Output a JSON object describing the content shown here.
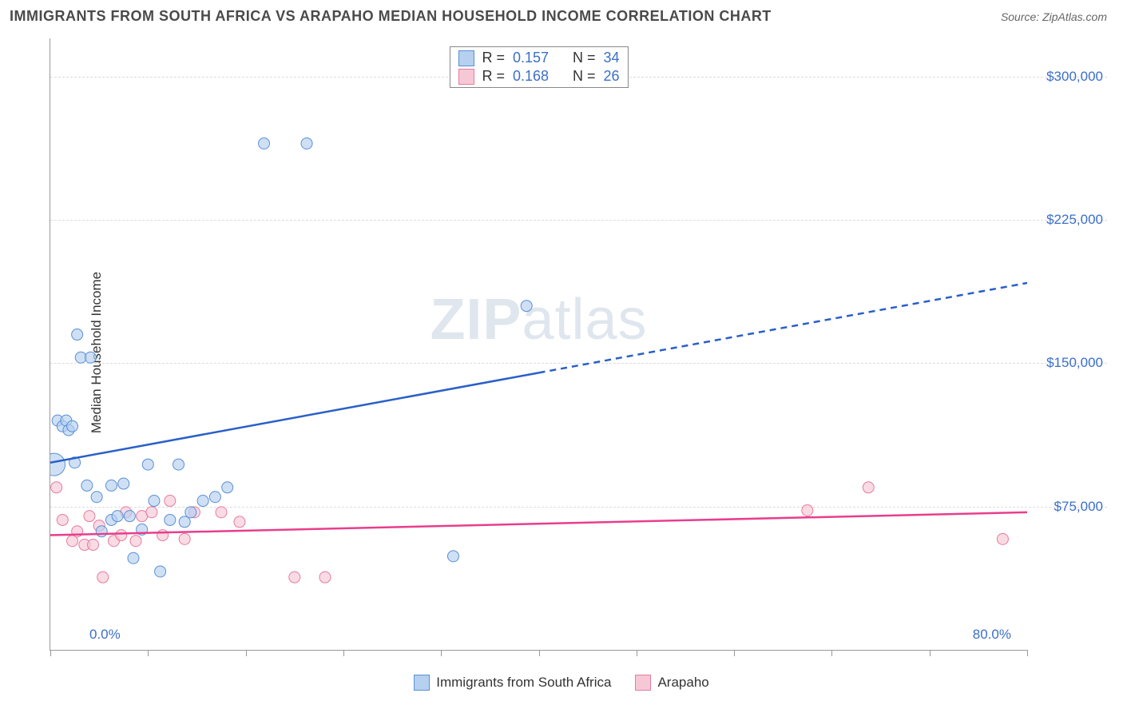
{
  "header": {
    "title": "IMMIGRANTS FROM SOUTH AFRICA VS ARAPAHO MEDIAN HOUSEHOLD INCOME CORRELATION CHART",
    "source_prefix": "Source: ",
    "source_name": "ZipAtlas.com"
  },
  "y_axis": {
    "label": "Median Household Income",
    "min": 0,
    "max": 320000,
    "ticks": [
      75000,
      150000,
      225000,
      300000
    ],
    "tick_labels": [
      "$75,000",
      "$150,000",
      "$225,000",
      "$300,000"
    ],
    "label_color": "#3b6fc9",
    "grid_color": "#dddddd"
  },
  "x_axis": {
    "min": 0,
    "max": 80,
    "min_label": "0.0%",
    "max_label": "80.0%",
    "tick_positions_pct": [
      0,
      8,
      16,
      24,
      32,
      40,
      48,
      56,
      64,
      72,
      80
    ],
    "label_color": "#3b6fc9"
  },
  "series": {
    "a": {
      "label": "Immigrants from South Africa",
      "fill": "#b6d0ef",
      "stroke": "#5a8fd6",
      "trend_color": "#2a5fc9",
      "r_label": "R =",
      "r_value": "0.157",
      "n_label": "N =",
      "n_value": "34",
      "trend": {
        "x1": 0,
        "y1": 98000,
        "x2_solid": 40,
        "y2_solid": 145000,
        "x2_dash": 80,
        "y2_dash": 192000
      },
      "points": [
        {
          "x": 0.3,
          "y": 97000,
          "r": 14
        },
        {
          "x": 0.6,
          "y": 120000,
          "r": 7
        },
        {
          "x": 1.0,
          "y": 117000,
          "r": 7
        },
        {
          "x": 1.3,
          "y": 120000,
          "r": 7
        },
        {
          "x": 1.5,
          "y": 115000,
          "r": 7
        },
        {
          "x": 1.8,
          "y": 117000,
          "r": 7
        },
        {
          "x": 2.2,
          "y": 165000,
          "r": 7
        },
        {
          "x": 2.5,
          "y": 153000,
          "r": 7
        },
        {
          "x": 3.3,
          "y": 153000,
          "r": 7
        },
        {
          "x": 2.0,
          "y": 98000,
          "r": 7
        },
        {
          "x": 3.0,
          "y": 86000,
          "r": 7
        },
        {
          "x": 3.8,
          "y": 80000,
          "r": 7
        },
        {
          "x": 4.2,
          "y": 62000,
          "r": 7
        },
        {
          "x": 5.0,
          "y": 86000,
          "r": 7
        },
        {
          "x": 5.0,
          "y": 68000,
          "r": 7
        },
        {
          "x": 5.5,
          "y": 70000,
          "r": 7
        },
        {
          "x": 6.0,
          "y": 87000,
          "r": 7
        },
        {
          "x": 6.5,
          "y": 70000,
          "r": 7
        },
        {
          "x": 6.8,
          "y": 48000,
          "r": 7
        },
        {
          "x": 7.5,
          "y": 63000,
          "r": 7
        },
        {
          "x": 8.0,
          "y": 97000,
          "r": 7
        },
        {
          "x": 8.5,
          "y": 78000,
          "r": 7
        },
        {
          "x": 9.0,
          "y": 41000,
          "r": 7
        },
        {
          "x": 9.8,
          "y": 68000,
          "r": 7
        },
        {
          "x": 10.5,
          "y": 97000,
          "r": 7
        },
        {
          "x": 11.0,
          "y": 67000,
          "r": 7
        },
        {
          "x": 11.5,
          "y": 72000,
          "r": 7
        },
        {
          "x": 12.5,
          "y": 78000,
          "r": 7
        },
        {
          "x": 13.5,
          "y": 80000,
          "r": 7
        },
        {
          "x": 14.5,
          "y": 85000,
          "r": 7
        },
        {
          "x": 17.5,
          "y": 265000,
          "r": 7
        },
        {
          "x": 21.0,
          "y": 265000,
          "r": 7
        },
        {
          "x": 33.0,
          "y": 49000,
          "r": 7
        },
        {
          "x": 39.0,
          "y": 180000,
          "r": 7
        }
      ]
    },
    "b": {
      "label": "Arapaho",
      "fill": "#f6c8d5",
      "stroke": "#e77ba0",
      "trend_color": "#e83e8c",
      "r_label": "R =",
      "r_value": "0.168",
      "n_label": "N =",
      "n_value": "26",
      "trend": {
        "x1": 0,
        "y1": 60000,
        "x2_solid": 80,
        "y2_solid": 72000,
        "x2_dash": 80,
        "y2_dash": 72000
      },
      "points": [
        {
          "x": 0.5,
          "y": 85000,
          "r": 7
        },
        {
          "x": 1.0,
          "y": 68000,
          "r": 7
        },
        {
          "x": 1.8,
          "y": 57000,
          "r": 7
        },
        {
          "x": 2.2,
          "y": 62000,
          "r": 7
        },
        {
          "x": 2.8,
          "y": 55000,
          "r": 7
        },
        {
          "x": 3.2,
          "y": 70000,
          "r": 7
        },
        {
          "x": 3.5,
          "y": 55000,
          "r": 7
        },
        {
          "x": 4.0,
          "y": 65000,
          "r": 7
        },
        {
          "x": 4.3,
          "y": 38000,
          "r": 7
        },
        {
          "x": 5.2,
          "y": 57000,
          "r": 7
        },
        {
          "x": 5.8,
          "y": 60000,
          "r": 7
        },
        {
          "x": 6.2,
          "y": 72000,
          "r": 7
        },
        {
          "x": 7.0,
          "y": 57000,
          "r": 7
        },
        {
          "x": 7.5,
          "y": 70000,
          "r": 7
        },
        {
          "x": 8.3,
          "y": 72000,
          "r": 7
        },
        {
          "x": 9.2,
          "y": 60000,
          "r": 7
        },
        {
          "x": 9.8,
          "y": 78000,
          "r": 7
        },
        {
          "x": 11.0,
          "y": 58000,
          "r": 7
        },
        {
          "x": 11.8,
          "y": 72000,
          "r": 7
        },
        {
          "x": 14.0,
          "y": 72000,
          "r": 7
        },
        {
          "x": 15.5,
          "y": 67000,
          "r": 7
        },
        {
          "x": 20.0,
          "y": 38000,
          "r": 7
        },
        {
          "x": 22.5,
          "y": 38000,
          "r": 7
        },
        {
          "x": 62.0,
          "y": 73000,
          "r": 7
        },
        {
          "x": 67.0,
          "y": 85000,
          "r": 7
        },
        {
          "x": 78.0,
          "y": 58000,
          "r": 7
        }
      ]
    }
  },
  "watermark": {
    "zip": "ZIP",
    "atlas": "atlas"
  }
}
